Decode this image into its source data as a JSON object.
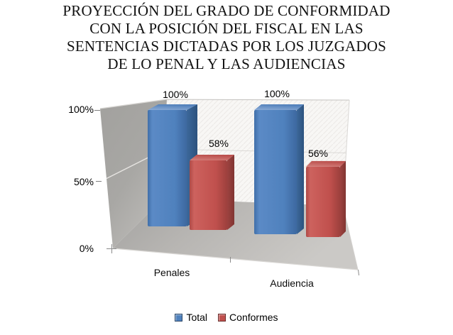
{
  "title_lines": [
    "PROYECCIÓN DEL GRADO DE CONFORMIDAD",
    "CON LA POSICIÓN DEL FISCAL EN LAS",
    "SENTENCIAS DICTADAS POR LOS JUZGADOS",
    "DE LO PENAL Y LAS AUDIENCIAS"
  ],
  "chart_data": {
    "type": "bar",
    "style": "3d-perspective-column",
    "title": "PROYECCIÓN DEL GRADO DE CONFORMIDAD CON LA POSICIÓN DEL FISCAL EN LAS SENTENCIAS DICTADAS POR LOS JUZGADOS DE LO PENAL Y LAS AUDIENCIAS",
    "categories": [
      "Penales",
      "Audiencia"
    ],
    "series": [
      {
        "name": "Total",
        "color": "#4F81BD",
        "values": [
          100,
          100
        ],
        "labels": [
          "100%",
          "100%"
        ]
      },
      {
        "name": "Conformes",
        "color": "#C0504D",
        "values": [
          58,
          56
        ],
        "labels": [
          "58%",
          "56%"
        ]
      }
    ],
    "yticks": [
      "0%",
      "50%",
      "100%"
    ],
    "ylim": [
      0,
      100
    ],
    "value_suffix": "%",
    "grid": "50-and-100-lines-on-walls",
    "legend_position": "bottom",
    "wall_color": "#ABA9A6",
    "back_wall_color": "#F7F6F4",
    "floor_color": "#B8B6B3"
  }
}
